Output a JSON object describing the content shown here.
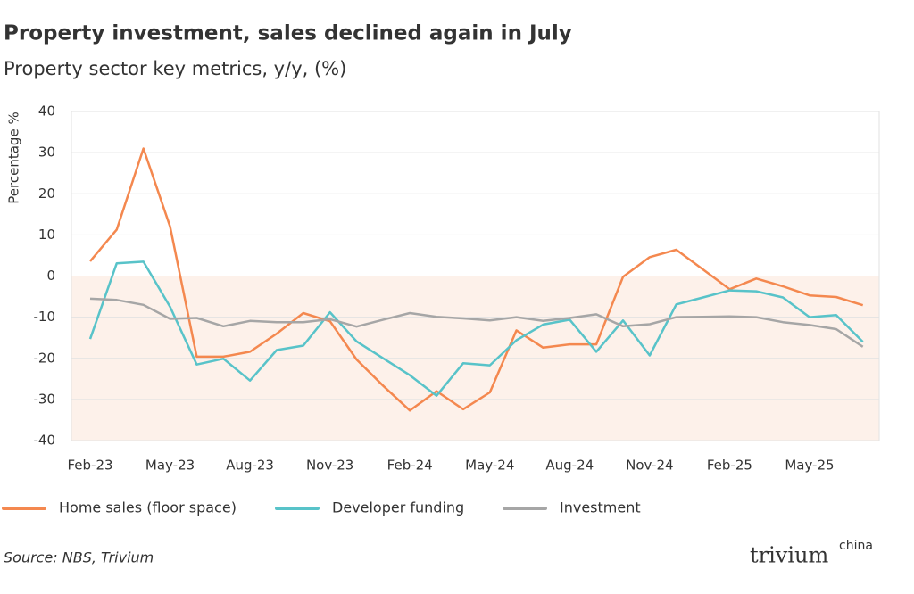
{
  "chart_data": {
    "type": "line",
    "title": "Property investment, sales declined again in July",
    "subtitle": "Property sector key metrics, y/y, (%)",
    "y_label": "Percentage %",
    "source": "Source: NBS, Trivium",
    "logo": "trivium",
    "logo_sup": "china",
    "categories": [
      "Feb-23",
      null,
      null,
      "May-23",
      null,
      null,
      "Aug-23",
      null,
      null,
      "Nov-23",
      null,
      null,
      "Feb-24",
      null,
      null,
      "May-24",
      null,
      null,
      "Aug-24",
      null,
      null,
      "Nov-24",
      null,
      null,
      "Feb-25",
      null,
      null,
      "May-25",
      null,
      null
    ],
    "series": [
      {
        "name": "Home sales (floor space)",
        "color": "#f4884f",
        "values": [
          3.6,
          11.3,
          31,
          12,
          -19.6,
          -19.6,
          -18.4,
          -14,
          -9,
          -11,
          -20.3,
          -26.7,
          -32.7,
          -28,
          -32.4,
          -28.3,
          -13.2,
          -17.4,
          -16.6,
          -16.6,
          -0.2,
          4.6,
          6.4,
          1.6,
          -3.2,
          -0.6,
          -2.5,
          -4.7,
          -5.1,
          -7.1
        ]
      },
      {
        "name": "Developer funding",
        "color": "#58c3c9",
        "values": [
          -15.3,
          3.1,
          3.5,
          -7.5,
          -21.5,
          -20.1,
          -25.4,
          -18,
          -16.9,
          -8.8,
          -15.9,
          -20,
          -24.1,
          -29.1,
          -21.2,
          -21.7,
          -15.6,
          -11.8,
          -10.6,
          -18.4,
          -10.8,
          -19.3,
          -6.9,
          -5.2,
          -3.5,
          -3.7,
          -5.2,
          -10,
          -9.5,
          -16
        ]
      },
      {
        "name": "Investment",
        "color": "#a6a6a6",
        "values": [
          -5.5,
          -5.8,
          -7.0,
          -10.4,
          -10.2,
          -12.2,
          -10.9,
          -11.2,
          -11.2,
          -10.5,
          -12.3,
          -10.6,
          -9.0,
          -9.9,
          -10.3,
          -10.8,
          -10.0,
          -10.9,
          -10.2,
          -9.3,
          -12.2,
          -11.7,
          -10.0,
          -9.9,
          -9.8,
          -10.0,
          -11.2,
          -11.9,
          -12.9,
          -17.2
        ]
      }
    ],
    "ylim": [
      -40,
      40
    ],
    "yticks": [
      -40,
      -30,
      -20,
      -10,
      0,
      10,
      20,
      30,
      40
    ],
    "grid": true,
    "negative_fill": "#fdf1ea"
  }
}
